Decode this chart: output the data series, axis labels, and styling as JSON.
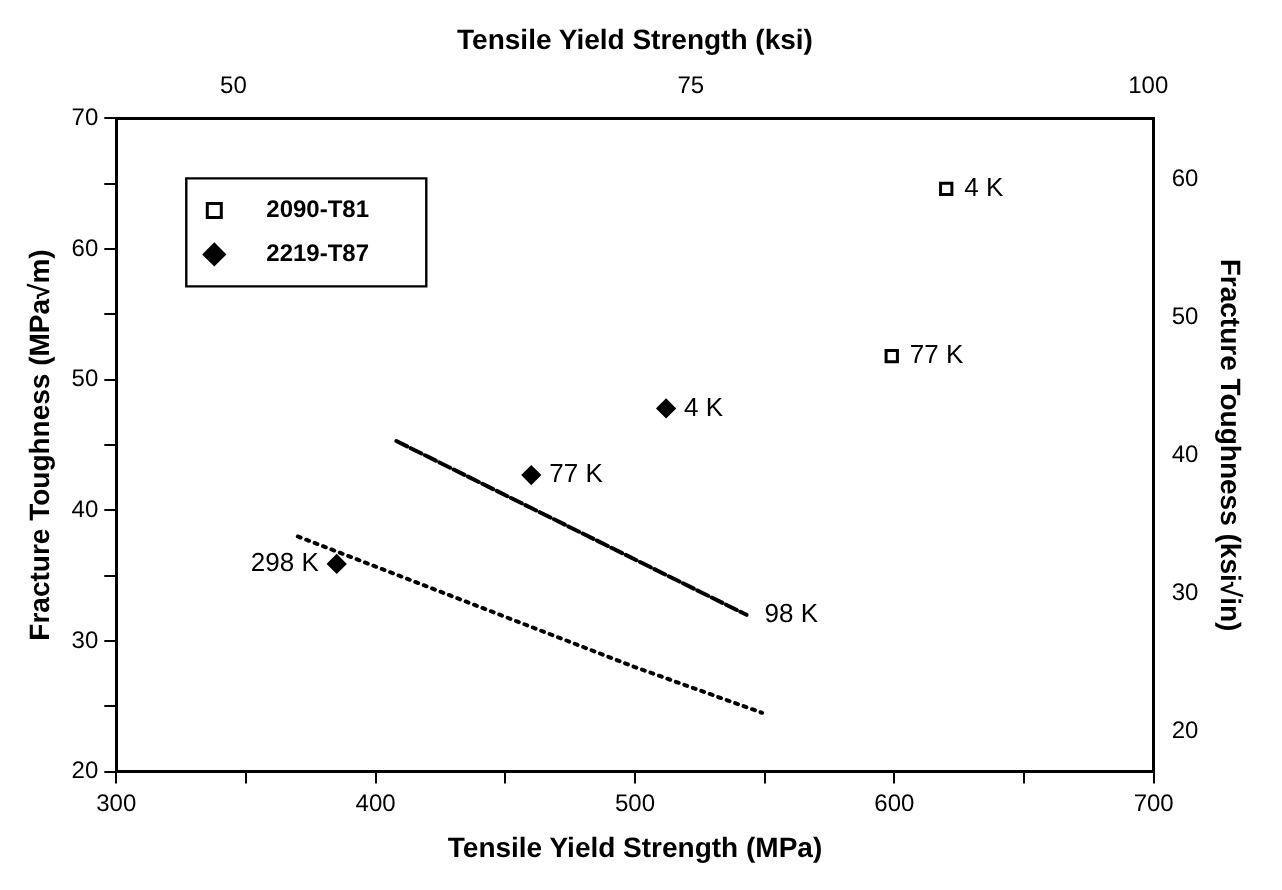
{
  "chart_data": {
    "type": "scatter",
    "xlabel": "Tensile Yield Strength (MPa)",
    "x2label": "Tensile Yield Strength (ksi)",
    "ylabel": "Fracture Toughness (MPa√m)",
    "y2label": "Fracture Toughness (ksi√in)",
    "xlim": [
      300,
      700
    ],
    "xticks": [
      300,
      {
        "value": 350,
        "label": null
      },
      400,
      {
        "value": 450,
        "label": null
      },
      500,
      {
        "value": 550,
        "label": null
      },
      600,
      {
        "value": 650,
        "label": null
      },
      700
    ],
    "x2lim": [
      43.6,
      100.3
    ],
    "x2ticks": [
      50,
      75,
      100
    ],
    "ylim": [
      20,
      70
    ],
    "yticks": [
      20,
      {
        "value": 25,
        "label": null
      },
      30,
      {
        "value": 35,
        "label": null
      },
      40,
      {
        "value": 45,
        "label": null
      },
      50,
      {
        "value": 55,
        "label": null
      },
      60,
      {
        "value": 65,
        "label": null
      },
      70
    ],
    "y2lim": [
      17.1,
      64.4
    ],
    "y2ticks": [
      20,
      30,
      40,
      50,
      60
    ],
    "series": [
      {
        "name": "2090-T81",
        "color": "#000000",
        "marker": "square",
        "x": [
          620,
          599
        ],
        "values": [
          64.6,
          51.8
        ]
      },
      {
        "name": "2219-T87",
        "color": "#000000",
        "marker": "diamond",
        "x": [
          512,
          460,
          385
        ],
        "values": [
          47.8,
          42.7,
          35.9
        ]
      },
      {
        "type": "line",
        "color": "#000000",
        "marker": "none",
        "line_style": "dashed",
        "x": [
          408,
          543
        ],
        "values": [
          45.3,
          32.0
        ]
      },
      {
        "type": "line",
        "color": "#000000",
        "marker": "none",
        "line_style": "dotted",
        "x": [
          370,
          500,
          549
        ],
        "values": [
          38.0,
          28.0,
          24.5
        ]
      }
    ],
    "annotations": [
      {
        "text": "4 K",
        "x": 620,
        "y": 64.6
      },
      {
        "text": "77 K",
        "x": 599,
        "y": 51.8
      },
      {
        "text": "4 K",
        "x": 512,
        "y": 47.8
      },
      {
        "text": "77 K",
        "x": 460,
        "y": 42.7
      },
      {
        "text": "298 K",
        "x": 385,
        "y": 35.9
      },
      {
        "text": "98 K",
        "x": 543,
        "y": 32.0
      }
    ],
    "legend": "top left",
    "grid": false
  }
}
